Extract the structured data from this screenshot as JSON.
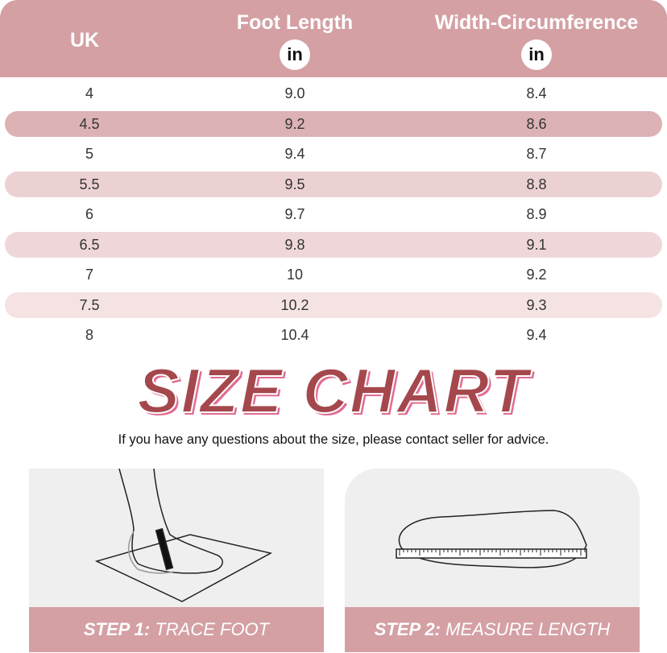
{
  "header": {
    "col1": "UK",
    "col2": "Foot Length",
    "col2_unit": "in",
    "col3": "Width-Circumference",
    "col3_unit": "in",
    "color": "#d4a0a4"
  },
  "rows": [
    {
      "uk": "4",
      "length": "9.0",
      "width": "8.4"
    },
    {
      "uk": "4.5",
      "length": "9.2",
      "width": "8.6"
    },
    {
      "uk": "5",
      "length": "9.4",
      "width": "8.7"
    },
    {
      "uk": "5.5",
      "length": "9.5",
      "width": "8.8"
    },
    {
      "uk": "6",
      "length": "9.7",
      "width": "8.9"
    },
    {
      "uk": "6.5",
      "length": "9.8",
      "width": "9.1"
    },
    {
      "uk": "7",
      "length": "10",
      "width": "9.2"
    },
    {
      "uk": "7.5",
      "length": "10.2",
      "width": "9.3"
    },
    {
      "uk": "8",
      "length": "10.4",
      "width": "9.4"
    }
  ],
  "title": "SIZE CHART",
  "note": "If you have any questions about the size, please contact seller for advice.",
  "steps": [
    {
      "step": "STEP 1:",
      "label": "TRACE FOOT",
      "icon": "foot-tracing-icon"
    },
    {
      "step": "STEP 2:",
      "label": "MEASURE LENGTH",
      "icon": "foot-ruler-icon"
    }
  ]
}
